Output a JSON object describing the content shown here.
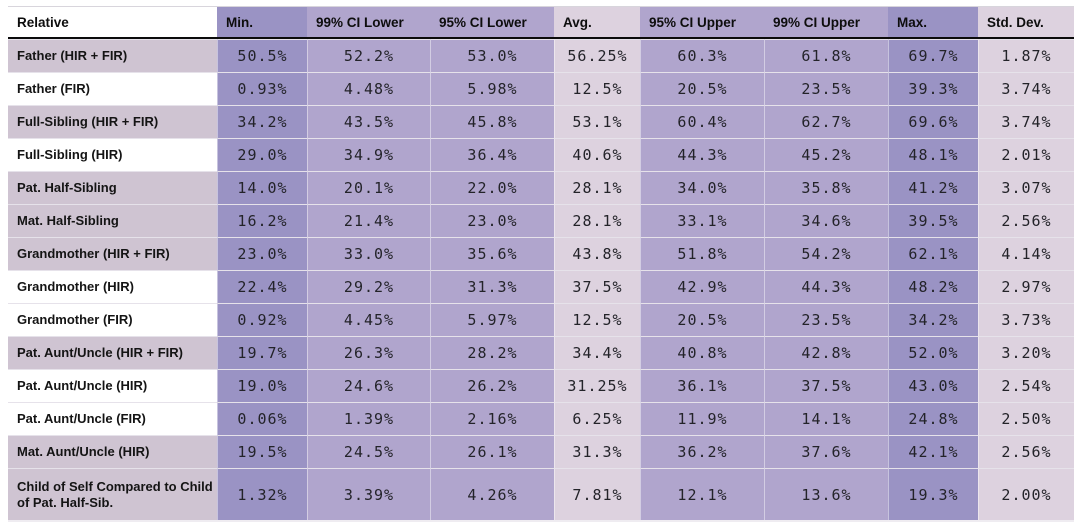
{
  "colors": {
    "min_max_column": "#9a93c4",
    "ci_column": "#b0a5cd",
    "avg_stddev_column": "#ddd2df",
    "shaded_row_label": "#cfc4d2",
    "white_row_label": "#ffffff",
    "header_underline": "#000000",
    "text": "#1a1a1a"
  },
  "chart_data": {
    "type": "table",
    "title": "",
    "layout_hints": {
      "header_underline": "solid black",
      "column_shading": "Min/Max dark purple, CI columns medium purple, Avg/Std.Dev light lavender",
      "value_alignment": "center",
      "values_are_percentages": true
    },
    "columns": [
      {
        "key": "relative",
        "label": "Relative",
        "shade": "sh-label"
      },
      {
        "key": "min",
        "label": "Min.",
        "shade": "sh-dark"
      },
      {
        "key": "ci99l",
        "label": "99% CI Lower",
        "shade": "sh-mid"
      },
      {
        "key": "ci95l",
        "label": "95% CI Lower",
        "shade": "sh-mid"
      },
      {
        "key": "avg",
        "label": "Avg.",
        "shade": "sh-light"
      },
      {
        "key": "ci95u",
        "label": "95% CI Upper",
        "shade": "sh-mid"
      },
      {
        "key": "ci99u",
        "label": "99% CI Upper",
        "shade": "sh-mid"
      },
      {
        "key": "max",
        "label": "Max.",
        "shade": "sh-dark"
      },
      {
        "key": "sd",
        "label": "Std. Dev.",
        "shade": "sh-light"
      }
    ],
    "rows": [
      {
        "label": "Father (HIR + FIR)",
        "shaded": true,
        "tall": false,
        "values": [
          "50.5%",
          "52.2%",
          "53.0%",
          "56.25%",
          "60.3%",
          "61.8%",
          "69.7%",
          "1.87%"
        ]
      },
      {
        "label": "Father (FIR)",
        "shaded": false,
        "tall": false,
        "values": [
          "0.93%",
          "4.48%",
          "5.98%",
          "12.5%",
          "20.5%",
          "23.5%",
          "39.3%",
          "3.74%"
        ]
      },
      {
        "label": "Full-Sibling (HIR + FIR)",
        "shaded": true,
        "tall": false,
        "values": [
          "34.2%",
          "43.5%",
          "45.8%",
          "53.1%",
          "60.4%",
          "62.7%",
          "69.6%",
          "3.74%"
        ]
      },
      {
        "label": "Full-Sibling (HIR)",
        "shaded": false,
        "tall": false,
        "values": [
          "29.0%",
          "34.9%",
          "36.4%",
          "40.6%",
          "44.3%",
          "45.2%",
          "48.1%",
          "2.01%"
        ]
      },
      {
        "label": "Pat. Half-Sibling",
        "shaded": true,
        "tall": false,
        "values": [
          "14.0%",
          "20.1%",
          "22.0%",
          "28.1%",
          "34.0%",
          "35.8%",
          "41.2%",
          "3.07%"
        ]
      },
      {
        "label": "Mat. Half-Sibling",
        "shaded": true,
        "tall": false,
        "values": [
          "16.2%",
          "21.4%",
          "23.0%",
          "28.1%",
          "33.1%",
          "34.6%",
          "39.5%",
          "2.56%"
        ]
      },
      {
        "label": "Grandmother (HIR + FIR)",
        "shaded": true,
        "tall": false,
        "values": [
          "23.0%",
          "33.0%",
          "35.6%",
          "43.8%",
          "51.8%",
          "54.2%",
          "62.1%",
          "4.14%"
        ]
      },
      {
        "label": "Grandmother (HIR)",
        "shaded": false,
        "tall": false,
        "values": [
          "22.4%",
          "29.2%",
          "31.3%",
          "37.5%",
          "42.9%",
          "44.3%",
          "48.2%",
          "2.97%"
        ]
      },
      {
        "label": "Grandmother (FIR)",
        "shaded": false,
        "tall": false,
        "values": [
          "0.92%",
          "4.45%",
          "5.97%",
          "12.5%",
          "20.5%",
          "23.5%",
          "34.2%",
          "3.73%"
        ]
      },
      {
        "label": "Pat. Aunt/Uncle (HIR + FIR)",
        "shaded": true,
        "tall": false,
        "values": [
          "19.7%",
          "26.3%",
          "28.2%",
          "34.4%",
          "40.8%",
          "42.8%",
          "52.0%",
          "3.20%"
        ]
      },
      {
        "label": "Pat. Aunt/Uncle (HIR)",
        "shaded": false,
        "tall": false,
        "values": [
          "19.0%",
          "24.6%",
          "26.2%",
          "31.25%",
          "36.1%",
          "37.5%",
          "43.0%",
          "2.54%"
        ]
      },
      {
        "label": "Pat. Aunt/Uncle (FIR)",
        "shaded": false,
        "tall": false,
        "values": [
          "0.06%",
          "1.39%",
          "2.16%",
          "6.25%",
          "11.9%",
          "14.1%",
          "24.8%",
          "2.50%"
        ]
      },
      {
        "label": "Mat. Aunt/Uncle (HIR)",
        "shaded": true,
        "tall": false,
        "values": [
          "19.5%",
          "24.5%",
          "26.1%",
          "31.3%",
          "36.2%",
          "37.6%",
          "42.1%",
          "2.56%"
        ]
      },
      {
        "label": "Child of Self Compared to Child of Pat. Half-Sib.",
        "shaded": true,
        "tall": true,
        "values": [
          "1.32%",
          "3.39%",
          "4.26%",
          "7.81%",
          "12.1%",
          "13.6%",
          "19.3%",
          "2.00%"
        ]
      }
    ]
  }
}
